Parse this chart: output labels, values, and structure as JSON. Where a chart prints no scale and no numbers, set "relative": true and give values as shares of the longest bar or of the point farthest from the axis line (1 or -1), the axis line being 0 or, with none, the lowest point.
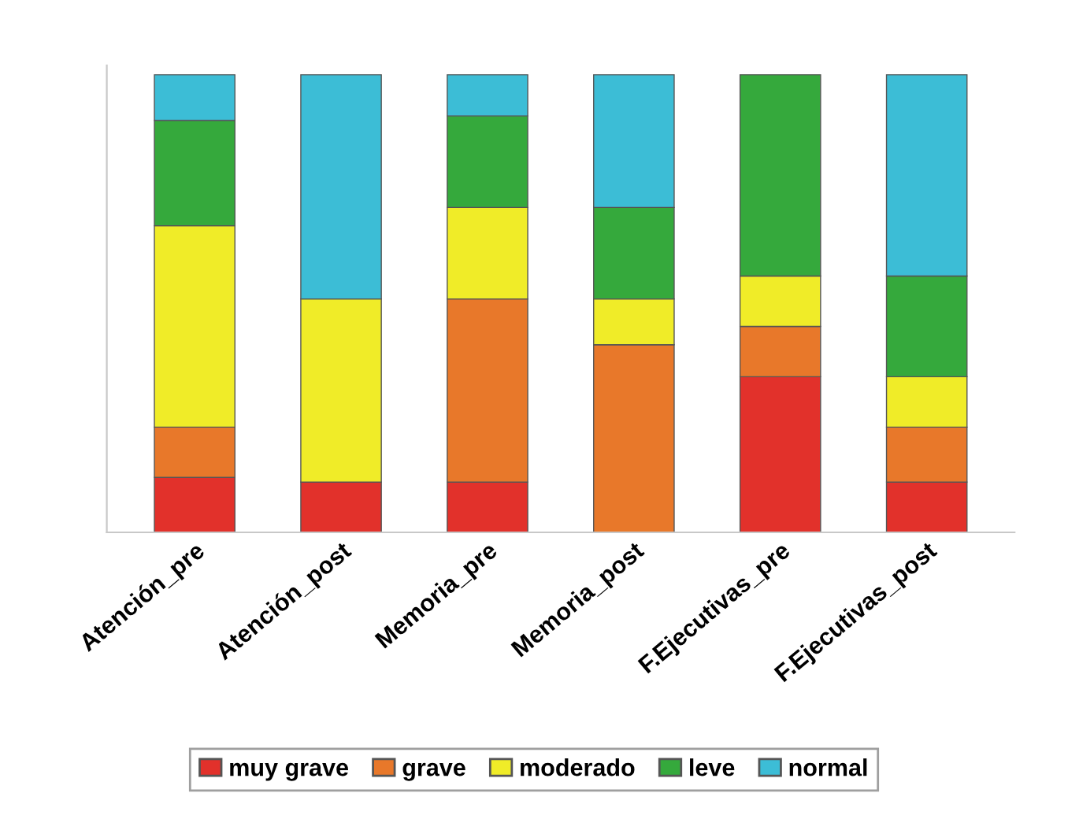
{
  "chart_data": {
    "type": "bar",
    "stacked": true,
    "relative": true,
    "categories": [
      "Atención_pre",
      "Atención_post",
      "Memoria_pre",
      "Memoria_post",
      "F.Ejecutivas_pre",
      "F.Ejecutivas_post"
    ],
    "series": [
      {
        "name": "muy grave",
        "color": "#e2312b",
        "values": [
          0.12,
          0.11,
          0.11,
          0,
          0.34,
          0.11
        ]
      },
      {
        "name": "grave",
        "color": "#e8782a",
        "values": [
          0.11,
          0,
          0.4,
          0.41,
          0.11,
          0.12
        ]
      },
      {
        "name": "moderado",
        "color": "#f0ec28",
        "values": [
          0.44,
          0.4,
          0.2,
          0.1,
          0.11,
          0.11
        ]
      },
      {
        "name": "leve",
        "color": "#35a93c",
        "values": [
          0.23,
          0,
          0.2,
          0.2,
          0.44,
          0.22
        ]
      },
      {
        "name": "normal",
        "color": "#3cbdd6",
        "values": [
          0.1,
          0.49,
          0.09,
          0.29,
          0,
          0.44
        ]
      }
    ],
    "legend": "bottom",
    "grid": false
  }
}
